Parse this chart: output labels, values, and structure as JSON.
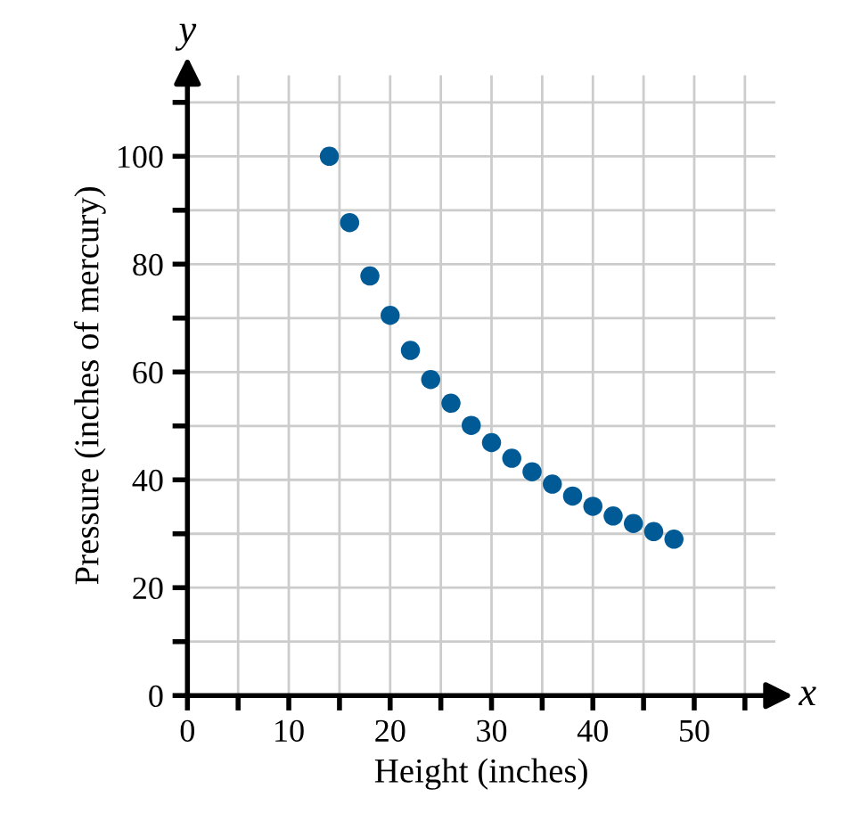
{
  "chart_data": {
    "type": "scatter",
    "xlabel": "Height (inches)",
    "ylabel": "Pressure (inches of mercury)",
    "x": [
      14,
      16,
      18,
      20,
      22,
      24,
      26,
      28,
      30,
      32,
      34,
      36,
      38,
      40,
      42,
      44,
      46,
      48
    ],
    "series": [
      {
        "color": "#005a96",
        "values": [
          100,
          87.7,
          77.8,
          70.5,
          64,
          58.6,
          54.2,
          50.1,
          46.9,
          44,
          41.5,
          39.2,
          37,
          35.1,
          33.3,
          31.9,
          30.4,
          29
        ]
      }
    ],
    "marker": "circle",
    "xlim": [
      0,
      58
    ],
    "ylim": [
      0,
      115
    ],
    "xticks": [
      0,
      {
        "value": 5,
        "label": null
      },
      10,
      {
        "value": 15,
        "label": null
      },
      20,
      {
        "value": 25,
        "label": null
      },
      30,
      {
        "value": 35,
        "label": null
      },
      40,
      {
        "value": 45,
        "label": null
      },
      50,
      {
        "value": 55,
        "label": null
      }
    ],
    "yticks": [
      0,
      {
        "value": 10,
        "label": null
      },
      20,
      {
        "value": 30,
        "label": null
      },
      40,
      {
        "value": 50,
        "label": null
      },
      60,
      {
        "value": 70,
        "label": null
      },
      80,
      {
        "value": 90,
        "label": null
      },
      100,
      {
        "value": 110,
        "label": null
      }
    ],
    "grid": true,
    "annotations": [
      "x",
      "y"
    ]
  }
}
